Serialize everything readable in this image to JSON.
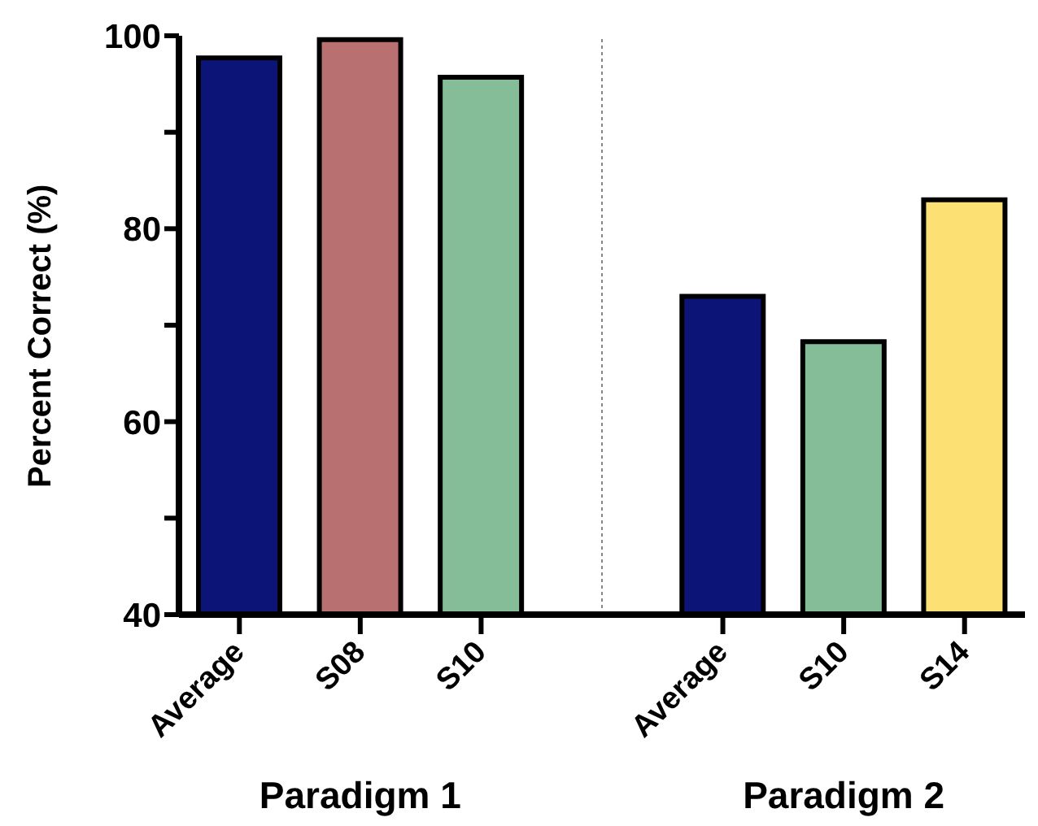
{
  "chart_data": {
    "type": "bar",
    "ylabel": "Percent Correct (%)",
    "categories": [
      "Average",
      "S08",
      "S10",
      null,
      "Average",
      "S10",
      "S14"
    ],
    "values": [
      97.7,
      99.6,
      95.7,
      null,
      73.0,
      68.3,
      83.0
    ],
    "colors": [
      "#0d1478",
      "#b87070",
      "#84bd98",
      null,
      "#0d1478",
      "#84bd98",
      "#fde073"
    ],
    "ylim": [
      40,
      100
    ],
    "yticks": [
      40,
      {
        "value": 50,
        "label": null
      },
      60,
      {
        "value": 70,
        "label": null
      },
      80,
      {
        "value": 90,
        "label": null
      },
      100
    ],
    "ref_lines": [
      {
        "axis": "x",
        "value": null,
        "color": "#888888",
        "line_style": "dotted"
      }
    ],
    "annotations": [
      "Paradigm 1",
      "Paradigm 2"
    ]
  }
}
